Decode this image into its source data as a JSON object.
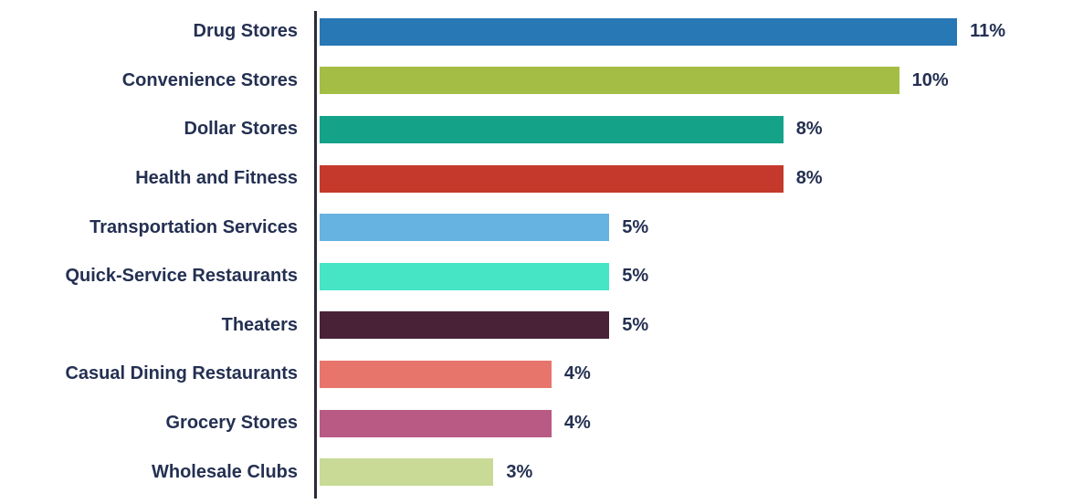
{
  "chart_data": {
    "type": "bar",
    "orientation": "horizontal",
    "title": "",
    "xlabel": "",
    "ylabel": "",
    "value_suffix": "%",
    "xlim": [
      0,
      13
    ],
    "grid": false,
    "legend": "none",
    "categories": [
      "Drug Stores",
      "Convenience Stores",
      "Dollar Stores",
      "Health and Fitness",
      "Transportation Services",
      "Quick-Service Restaurants",
      "Theaters",
      "Casual Dining Restaurants",
      "Grocery Stores",
      "Wholesale Clubs"
    ],
    "values": [
      11,
      10,
      8,
      8,
      5,
      5,
      5,
      4,
      4,
      3
    ],
    "value_labels": [
      "11%",
      "10%",
      "8%",
      "8%",
      "5%",
      "5%",
      "5%",
      "4%",
      "4%",
      "3%"
    ],
    "colors": [
      "#2878b5",
      "#a4bd44",
      "#14a389",
      "#c4392b",
      "#66b2e0",
      "#45e5c5",
      "#4a2238",
      "#e8756b",
      "#b95a84",
      "#c8da96"
    ],
    "label_color": "#243052",
    "axis_color": "#2b2b3a"
  }
}
